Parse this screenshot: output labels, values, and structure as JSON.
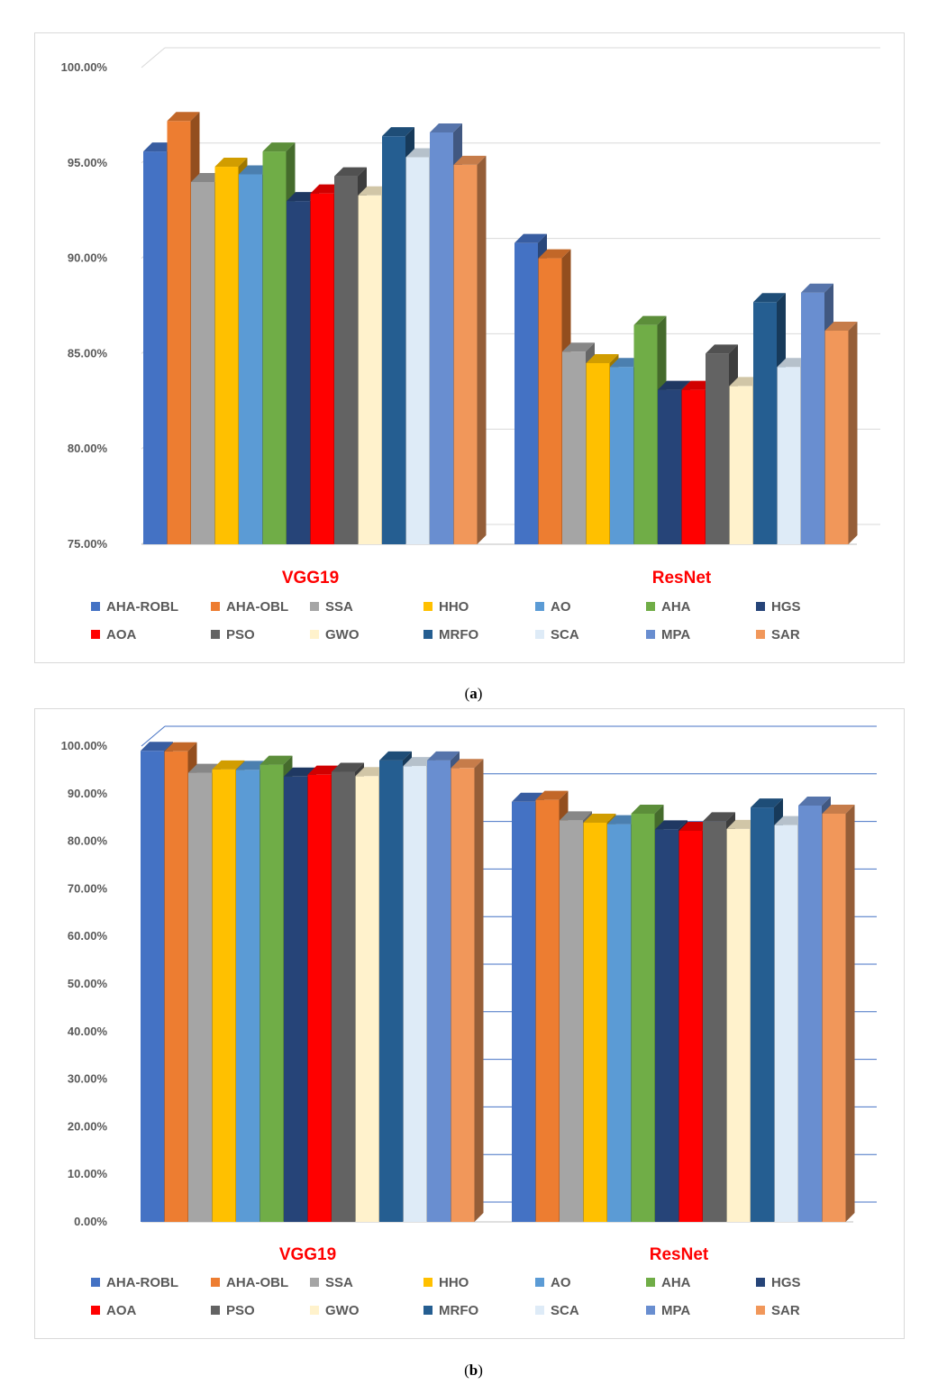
{
  "captions": {
    "a": "a",
    "b": "b"
  },
  "legend": [
    {
      "name": "AHA-ROBL",
      "color": "#4472C4"
    },
    {
      "name": "AHA-OBL",
      "color": "#ED7D31"
    },
    {
      "name": "SSA",
      "color": "#A5A5A5"
    },
    {
      "name": "HHO",
      "color": "#FFC000"
    },
    {
      "name": "AO",
      "color": "#5B9BD5"
    },
    {
      "name": "AHA",
      "color": "#70AD47"
    },
    {
      "name": "HGS",
      "color": "#264478"
    },
    {
      "name": "AOA",
      "color": "#FF0000"
    },
    {
      "name": "PSO",
      "color": "#636363"
    },
    {
      "name": "GWO",
      "color": "#FFF2CC"
    },
    {
      "name": "MRFO",
      "color": "#255E91"
    },
    {
      "name": "SCA",
      "color": "#DEEBF7"
    },
    {
      "name": "MPA",
      "color": "#698ED0"
    },
    {
      "name": "SAR",
      "color": "#F1975A"
    }
  ],
  "chart_data": [
    {
      "type": "bar",
      "categories": [
        "VGG19",
        "ResNet"
      ],
      "category_color": "#FF0000",
      "ylim": [
        75,
        100
      ],
      "yticks": [
        75,
        80,
        85,
        90,
        95,
        100
      ],
      "ytick_labels": [
        "75.00%",
        "80.00%",
        "85.00%",
        "90.00%",
        "95.00%",
        "100.00%"
      ],
      "grid": true,
      "grid_color": "#d9d9d9",
      "legend_position": "bottom",
      "series": [
        {
          "name": "AHA-ROBL",
          "values": [
            95.6,
            90.8
          ]
        },
        {
          "name": "AHA-OBL",
          "values": [
            97.2,
            90.0
          ]
        },
        {
          "name": "SSA",
          "values": [
            94.0,
            85.1
          ]
        },
        {
          "name": "HHO",
          "values": [
            94.8,
            84.5
          ]
        },
        {
          "name": "AO",
          "values": [
            94.4,
            84.3
          ]
        },
        {
          "name": "AHA",
          "values": [
            95.6,
            86.5
          ]
        },
        {
          "name": "HGS",
          "values": [
            93.0,
            83.1
          ]
        },
        {
          "name": "AOA",
          "values": [
            93.4,
            83.1
          ]
        },
        {
          "name": "PSO",
          "values": [
            94.3,
            85.0
          ]
        },
        {
          "name": "GWO",
          "values": [
            93.3,
            83.3
          ]
        },
        {
          "name": "MRFO",
          "values": [
            96.4,
            87.7
          ]
        },
        {
          "name": "SCA",
          "values": [
            95.3,
            84.3
          ]
        },
        {
          "name": "MPA",
          "values": [
            96.6,
            88.2
          ]
        },
        {
          "name": "SAR",
          "values": [
            94.9,
            86.2
          ]
        }
      ]
    },
    {
      "type": "bar",
      "categories": [
        "VGG19",
        "ResNet"
      ],
      "category_color": "#FF0000",
      "ylim": [
        0,
        100
      ],
      "yticks": [
        0,
        10,
        20,
        30,
        40,
        50,
        60,
        70,
        80,
        90,
        100
      ],
      "ytick_labels": [
        "0.00%",
        "10.00%",
        "20.00%",
        "30.00%",
        "40.00%",
        "50.00%",
        "60.00%",
        "70.00%",
        "80.00%",
        "90.00%",
        "100.00%"
      ],
      "grid": true,
      "grid_color": "#4472C4",
      "legend_position": "bottom",
      "series": [
        {
          "name": "AHA-ROBL",
          "values": [
            99.0,
            88.3
          ]
        },
        {
          "name": "AHA-OBL",
          "values": [
            98.9,
            88.7
          ]
        },
        {
          "name": "SSA",
          "values": [
            94.4,
            84.4
          ]
        },
        {
          "name": "HHO",
          "values": [
            95.1,
            83.9
          ]
        },
        {
          "name": "AO",
          "values": [
            95.0,
            83.6
          ]
        },
        {
          "name": "AHA",
          "values": [
            96.1,
            85.8
          ]
        },
        {
          "name": "HGS",
          "values": [
            93.6,
            82.5
          ]
        },
        {
          "name": "AOA",
          "values": [
            94.0,
            82.2
          ]
        },
        {
          "name": "PSO",
          "values": [
            94.6,
            84.2
          ]
        },
        {
          "name": "GWO",
          "values": [
            93.7,
            82.6
          ]
        },
        {
          "name": "MRFO",
          "values": [
            97.0,
            87.1
          ]
        },
        {
          "name": "SCA",
          "values": [
            95.8,
            83.4
          ]
        },
        {
          "name": "MPA",
          "values": [
            97.0,
            87.5
          ]
        },
        {
          "name": "SAR",
          "values": [
            95.4,
            85.8
          ]
        }
      ]
    }
  ]
}
